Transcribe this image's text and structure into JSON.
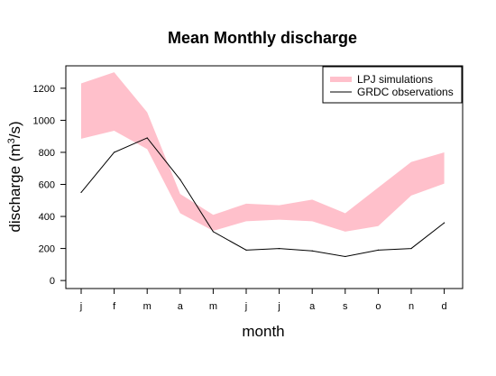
{
  "chart_data": {
    "type": "area",
    "title": "Mean Monthly discharge",
    "xlabel": "month",
    "ylabel_main": "discharge (m",
    "ylabel_sup": "3",
    "ylabel_end": "/s)",
    "categories": [
      "j",
      "f",
      "m",
      "a",
      "m",
      "j",
      "j",
      "a",
      "s",
      "o",
      "n",
      "d"
    ],
    "ylim": [
      -50,
      1340
    ],
    "yticks": [
      0,
      200,
      400,
      600,
      800,
      1000,
      1200
    ],
    "grid": false,
    "legend_position": "top-right",
    "band": {
      "name": "LPJ simulations",
      "color": "#ffc0cb",
      "upper": [
        1230,
        1300,
        1050,
        540,
        410,
        480,
        470,
        505,
        420,
        580,
        740,
        800
      ],
      "lower": [
        885,
        935,
        820,
        420,
        310,
        370,
        380,
        370,
        305,
        340,
        530,
        605
      ]
    },
    "series": [
      {
        "name": "GRDC observations",
        "color": "#000000",
        "values": [
          550,
          800,
          890,
          630,
          305,
          190,
          200,
          185,
          150,
          190,
          200,
          360
        ]
      }
    ]
  }
}
